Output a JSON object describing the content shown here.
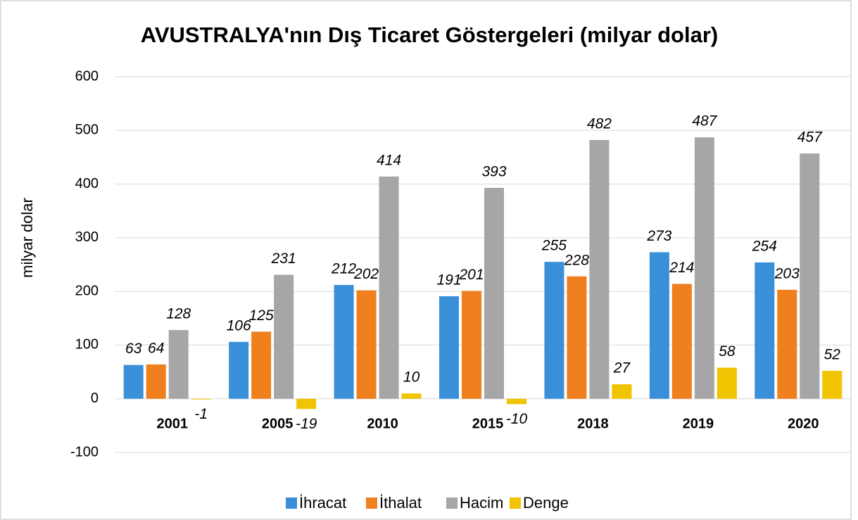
{
  "chart_data": {
    "type": "bar",
    "title": "AVUSTRALYA'nın Dış Ticaret Göstergeleri  (milyar dolar)",
    "y_label": "milyar dolar",
    "categories": [
      "2001",
      "2005",
      "2010",
      "2015",
      "2018",
      "2019",
      "2020"
    ],
    "series": [
      {
        "name": "İhracat",
        "color": "#3a8fd9",
        "values": [
          63,
          106,
          212,
          191,
          255,
          273,
          254
        ]
      },
      {
        "name": "İthalat",
        "color": "#f07f1e",
        "values": [
          64,
          125,
          202,
          201,
          228,
          214,
          203
        ]
      },
      {
        "name": "Hacim",
        "color": "#a6a6a6",
        "values": [
          128,
          231,
          414,
          393,
          482,
          487,
          457
        ]
      },
      {
        "name": "Denge",
        "color": "#f0c400",
        "values": [
          -1,
          -19,
          10,
          -10,
          27,
          58,
          52
        ]
      }
    ],
    "ylim": [
      -100,
      600
    ],
    "yticks": [
      -100,
      0,
      100,
      200,
      300,
      400,
      500,
      600
    ],
    "grid": true,
    "legend": "bottom"
  }
}
